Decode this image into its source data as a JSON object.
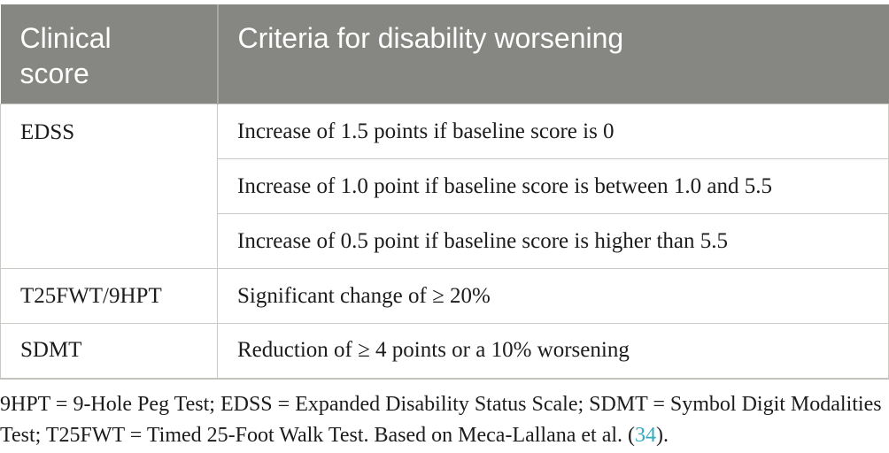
{
  "table": {
    "header": {
      "col1": "Clinical score",
      "col2": "Criteria for disability worsening"
    },
    "rows": [
      {
        "score": "EDSS",
        "criteria": [
          "Increase of 1.5 points if baseline score is 0",
          "Increase of 1.0 point if baseline score is between 1.0 and 5.5",
          "Increase of 0.5 point if baseline score is higher than 5.5"
        ]
      },
      {
        "score": "T25FWT/9HPT",
        "criteria": [
          "Significant change of ≥ 20%"
        ]
      },
      {
        "score": "SDMT",
        "criteria": [
          "Reduction of ≥ 4 points or a 10% worsening"
        ]
      }
    ]
  },
  "footnote": {
    "text_before_citation": "9HPT = 9-Hole Peg Test; EDSS = Expanded Disability Status Scale; SDMT = Symbol Digit Modalities Test; T25FWT = Timed 25-Foot Walk Test. Based on Meca-Lallana et al. (",
    "citation_number": "34",
    "text_after_citation": ")."
  },
  "colors": {
    "header_background": "#868682",
    "header_text": "#ffffff",
    "header_divider": "#a7a7a3",
    "grid_line": "#c9c9c5",
    "body_text": "#1c1c1c",
    "citation_accent": "#35aabf"
  }
}
